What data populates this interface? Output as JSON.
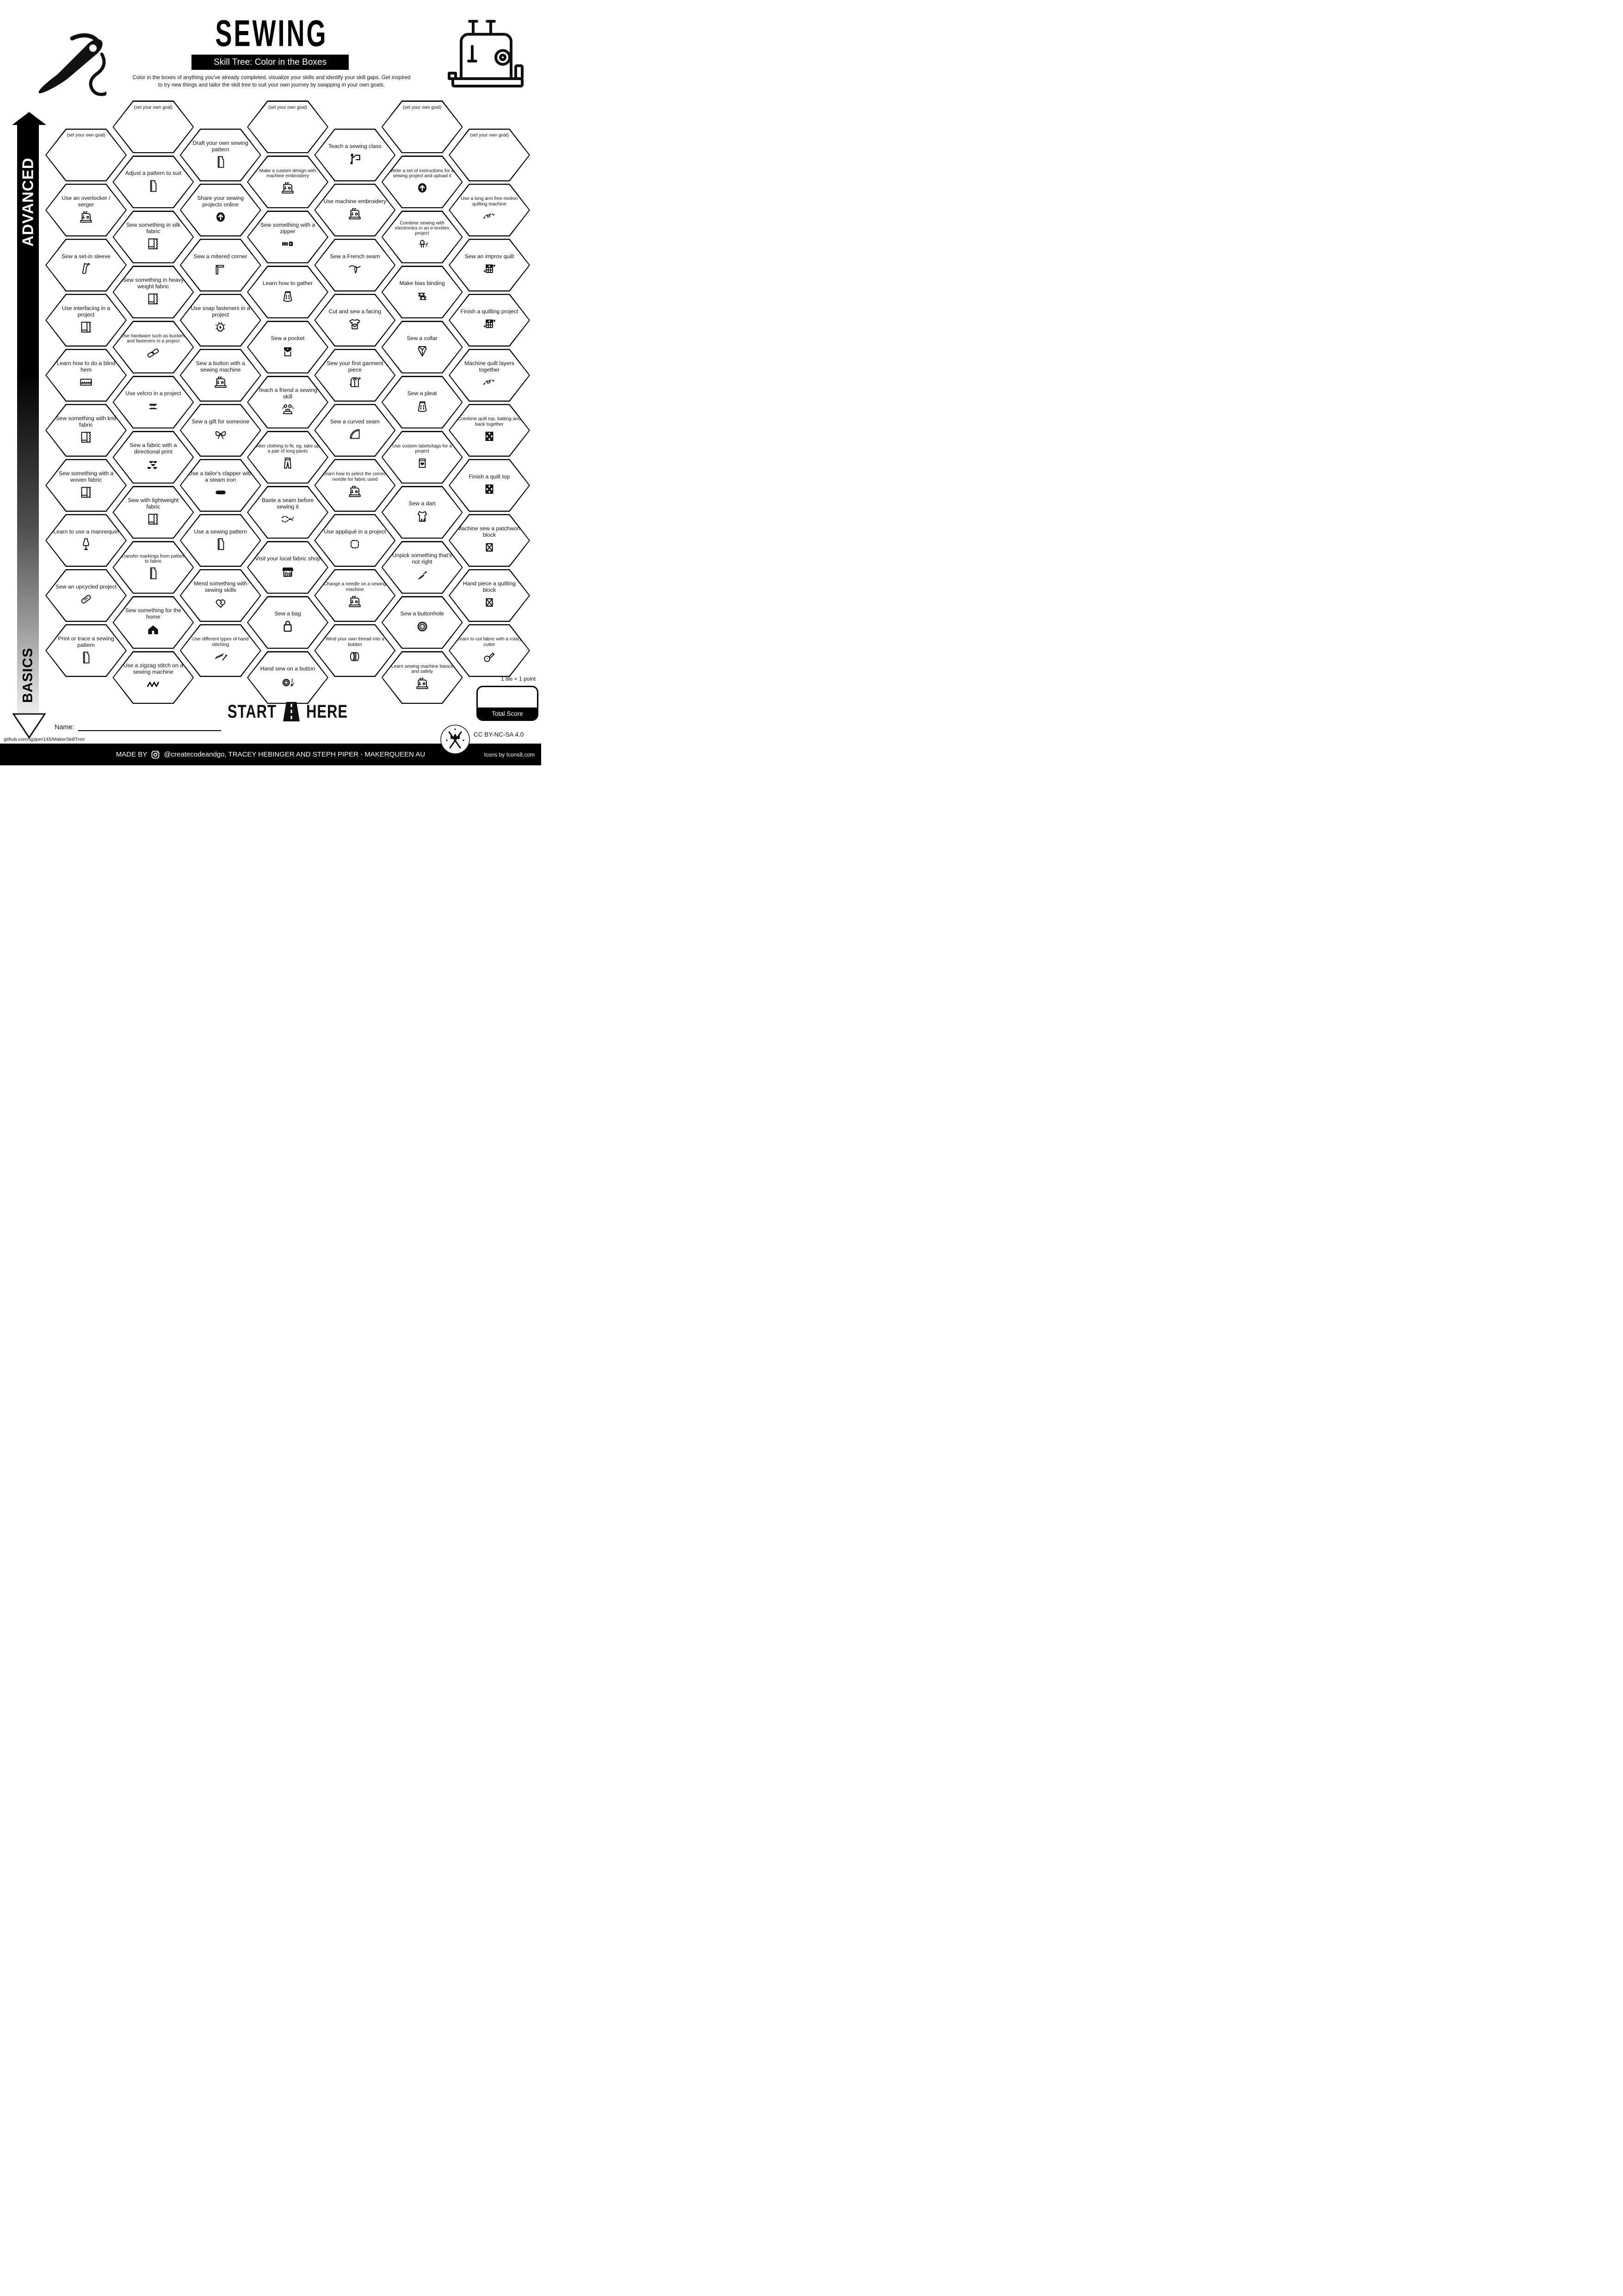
{
  "colors": {
    "ink": "#000000",
    "paper": "#ffffff"
  },
  "header": {
    "title": "SEWING",
    "subtitle": "Skill Tree: Color in the Boxes",
    "description": [
      "Color in the boxes of anything you've already completed, visualize your skills and identify your skill gaps.  Get inspired",
      "to try new things and tailor the skill tree to suit your own journey by swapping in your own goals."
    ],
    "left_icon": "needle-thread-icon",
    "right_icon": "sewing-machine-icon"
  },
  "axis": {
    "top_label": "ADVANCED",
    "bottom_label": "BASICS"
  },
  "hexagons": [
    {
      "col": 0,
      "row": 0,
      "label": "(set your own goal)",
      "goal": true
    },
    {
      "col": 0,
      "row": 1,
      "label": "Use an overlocker / serger",
      "icon": "overlocker"
    },
    {
      "col": 0,
      "row": 2,
      "label": "Sew a set-in sleeve",
      "icon": "set-in-sleeve"
    },
    {
      "col": 0,
      "row": 3,
      "label": "Use interfacing in a project",
      "icon": "interfacing-fabric"
    },
    {
      "col": 0,
      "row": 4,
      "label": "Learn how to do a blind hem",
      "icon": "blind-hem"
    },
    {
      "col": 0,
      "row": 5,
      "label": "Sew something with knit fabric",
      "icon": "knit-fabric"
    },
    {
      "col": 0,
      "row": 6,
      "label": "Sew something with a woven fabric",
      "icon": "woven-fabric"
    },
    {
      "col": 0,
      "row": 7,
      "label": "Learn to use a mannequin",
      "icon": "mannequin"
    },
    {
      "col": 0,
      "row": 8,
      "label": "Sew an upcycled project",
      "icon": "upcycled-patch"
    },
    {
      "col": 0,
      "row": 9,
      "label": "Print or trace a sewing pattern",
      "icon": "pattern-piece"
    },
    {
      "col": 1,
      "row": 0,
      "label": "(set your own goal)",
      "goal": true
    },
    {
      "col": 1,
      "row": 1,
      "label": "Adjust a pattern to suit",
      "icon": "pattern-piece"
    },
    {
      "col": 1,
      "row": 2,
      "label": "Sew something in silk fabric",
      "icon": "silk-fabric"
    },
    {
      "col": 1,
      "row": 3,
      "label": "Sew something in heavy weight fabric",
      "icon": "heavyweight-fabric"
    },
    {
      "col": 1,
      "row": 4,
      "label": "Use hardware such as buckles and fasteners in a project",
      "sm": true,
      "icon": "buckle-hardware"
    },
    {
      "col": 1,
      "row": 5,
      "label": "Use velcro in a project",
      "icon": "velcro"
    },
    {
      "col": 1,
      "row": 6,
      "label": "Sew a fabric with a directional print",
      "icon": "directional-print"
    },
    {
      "col": 1,
      "row": 7,
      "label": "Sew with lightweight fabric",
      "icon": "lightweight-fabric"
    },
    {
      "col": 1,
      "row": 8,
      "label": "Transfer markings from pattern to fabric",
      "sm": true,
      "icon": "pattern-piece"
    },
    {
      "col": 1,
      "row": 9,
      "label": "Sew something for the home",
      "icon": "home-house"
    },
    {
      "col": 1,
      "row": 10,
      "label": "Use a zigzag stitch on a sewing machine",
      "icon": "zigzag-stitch"
    },
    {
      "col": 2,
      "row": 0,
      "label": "Draft your own sewing pattern",
      "icon": "pattern-piece"
    },
    {
      "col": 2,
      "row": 1,
      "label": "Share your sewing projects online",
      "icon": "upload-arrow"
    },
    {
      "col": 2,
      "row": 2,
      "label": "Sew a mitered corner",
      "icon": "mitered-corner"
    },
    {
      "col": 2,
      "row": 3,
      "label": "Use snap fasteners in a project",
      "icon": "snap-fastener"
    },
    {
      "col": 2,
      "row": 4,
      "label": "Sew a button with a sewing machine",
      "icon": "sewing-machine"
    },
    {
      "col": 2,
      "row": 5,
      "label": "Sew a gift for someone",
      "icon": "gift-bow"
    },
    {
      "col": 2,
      "row": 6,
      "label": "Use a tailor's clapper with a steam iron",
      "icon": "tailors-clapper"
    },
    {
      "col": 2,
      "row": 7,
      "label": "Use a sewing pattern",
      "icon": "pattern-piece"
    },
    {
      "col": 2,
      "row": 8,
      "label": "Mend something with sewing skills",
      "icon": "mended-heart"
    },
    {
      "col": 2,
      "row": 9,
      "label": "Use different types of hand stitching",
      "sm": true,
      "icon": "hand-stitching"
    },
    {
      "col": 3,
      "row": 0,
      "label": "(set your own goal)",
      "goal": true
    },
    {
      "col": 3,
      "row": 1,
      "label": "Make a custom design with machine embroidery",
      "sm": true,
      "icon": "embroidery-machine"
    },
    {
      "col": 3,
      "row": 2,
      "label": "Sew something with a zipper",
      "icon": "zipper"
    },
    {
      "col": 3,
      "row": 3,
      "label": "Learn how to gather",
      "icon": "gathered-skirt"
    },
    {
      "col": 3,
      "row": 4,
      "label": "Sew a pocket",
      "icon": "pocket"
    },
    {
      "col": 3,
      "row": 5,
      "label": "Teach a friend a sewing skill",
      "icon": "teach-friend"
    },
    {
      "col": 3,
      "row": 6,
      "label": "Alter clothing to fit, eg. take up a pair of long pants",
      "sm": true,
      "icon": "pants"
    },
    {
      "col": 3,
      "row": 7,
      "label": "Baste a seam before sewing it",
      "icon": "baste-stitch"
    },
    {
      "col": 3,
      "row": 8,
      "label": "Visit your local fabric shop",
      "icon": "fabric-shop"
    },
    {
      "col": 3,
      "row": 9,
      "label": "Sew a bag",
      "icon": "tote-bag"
    },
    {
      "col": 3,
      "row": 10,
      "label": "Hand sew on a button",
      "icon": "button-confetti"
    },
    {
      "col": 4,
      "row": 0,
      "label": "Teach a sewing class",
      "icon": "teach-class"
    },
    {
      "col": 4,
      "row": 1,
      "label": "Use machine embroidery",
      "icon": "embroidery-machine"
    },
    {
      "col": 4,
      "row": 2,
      "label": "Sew a French seam",
      "icon": "french-seam"
    },
    {
      "col": 4,
      "row": 3,
      "label": "Cut and sew a facing",
      "icon": "facing-shirt"
    },
    {
      "col": 4,
      "row": 4,
      "label": "Sew your first garment piece",
      "icon": "garment-sparkle"
    },
    {
      "col": 4,
      "row": 5,
      "label": "Sew a curved seam",
      "icon": "curved-seam"
    },
    {
      "col": 4,
      "row": 6,
      "label": "Learn how to select the correct needle for fabric used",
      "sm": true,
      "icon": "sewing-machine"
    },
    {
      "col": 4,
      "row": 7,
      "label": "Use appliqué in a project",
      "icon": "applique-patch"
    },
    {
      "col": 4,
      "row": 8,
      "label": "Change a needle on a sewing machine",
      "sm": true,
      "icon": "sewing-machine"
    },
    {
      "col": 4,
      "row": 9,
      "label": "Wind your own thread into a bobbin",
      "sm": true,
      "icon": "bobbin"
    },
    {
      "col": 5,
      "row": 0,
      "label": "(set your own goal)",
      "goal": true
    },
    {
      "col": 5,
      "row": 1,
      "label": "Write a set of instructions for a sewing project and upload it",
      "sm": true,
      "icon": "upload-arrow"
    },
    {
      "col": 5,
      "row": 2,
      "label": "Combine sewing with electronics in an e-textiles project",
      "sm": true,
      "icon": "led-bolt"
    },
    {
      "col": 5,
      "row": 3,
      "label": "Make bias binding",
      "icon": "bias-binding"
    },
    {
      "col": 5,
      "row": 4,
      "label": "Sew a collar",
      "icon": "collar"
    },
    {
      "col": 5,
      "row": 5,
      "label": "Sew a pleat",
      "icon": "pleated-skirt"
    },
    {
      "col": 5,
      "row": 6,
      "label": "Use custom labels/tags for a project",
      "sm": true,
      "icon": "label-tag"
    },
    {
      "col": 5,
      "row": 7,
      "label": "Sew a dart",
      "icon": "dart-bodice"
    },
    {
      "col": 5,
      "row": 8,
      "label": "Unpick something that's not right",
      "icon": "seam-ripper"
    },
    {
      "col": 5,
      "row": 9,
      "label": "Sew a buttonhole",
      "icon": "button"
    },
    {
      "col": 5,
      "row": 10,
      "label": "Learn sewing machine basics and safety",
      "sm": true,
      "icon": "sewing-machine"
    },
    {
      "col": 6,
      "row": 0,
      "label": "(set your own goal)",
      "goal": true
    },
    {
      "col": 6,
      "row": 1,
      "label": "Use a long arm free motion quilting machine",
      "sm": true,
      "icon": "free-motion"
    },
    {
      "col": 6,
      "row": 2,
      "label": "Sew an improv quilt",
      "icon": "improv-quilt"
    },
    {
      "col": 6,
      "row": 3,
      "label": "Finish a quilting project",
      "icon": "quilt-sparkle"
    },
    {
      "col": 6,
      "row": 4,
      "label": "Machine quilt layers together",
      "icon": "free-motion"
    },
    {
      "col": 6,
      "row": 5,
      "label": "Combine quilt top, batting and back together",
      "sm": true,
      "icon": "quilt-block"
    },
    {
      "col": 6,
      "row": 6,
      "label": "Finish a quilt top",
      "icon": "quilt-block"
    },
    {
      "col": 6,
      "row": 7,
      "label": "Machine sew a patchwork block",
      "icon": "block-x"
    },
    {
      "col": 6,
      "row": 8,
      "label": "Hand piece a quilting block",
      "icon": "block-x"
    },
    {
      "col": 6,
      "row": 9,
      "label": "Learn to cut fabric with a rotary cutter",
      "sm": true,
      "icon": "rotary-cutter"
    }
  ],
  "footer": {
    "start_label": "START",
    "here_label": "HERE",
    "road_icon": "road-icon",
    "tile_note": "1 tile = 1 point",
    "total_score_label": "Total Score",
    "name_label": "Name:",
    "repo_url": "github.com/sjpiper145/MakerSkillTree",
    "license": "CC BY-NC-SA 4.0",
    "made_by_prefix": "MADE BY",
    "credits": "@createcodeandgo, TRACEY HEBINGER  AND STEPH PIPER  -  MAKERQUEEN AU",
    "icons_credit": "Icons by Icons8.com"
  }
}
